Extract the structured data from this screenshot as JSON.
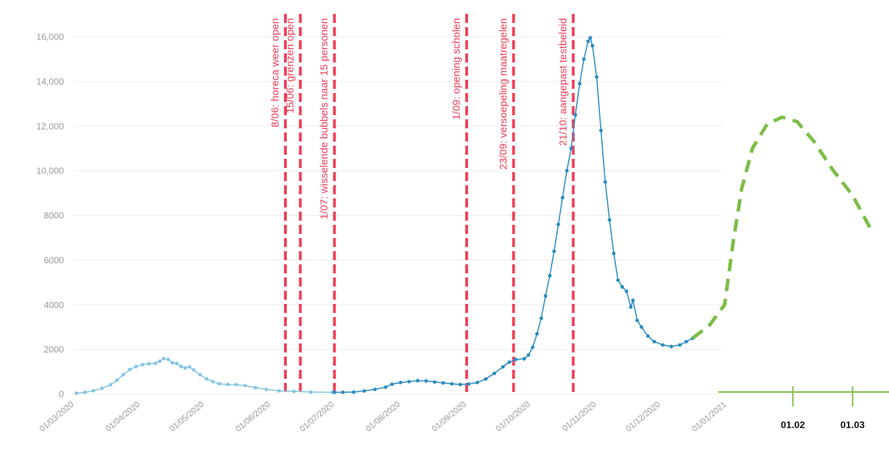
{
  "chart_data": {
    "type": "line",
    "title": "",
    "xlabel": "",
    "ylabel": "",
    "ylim": [
      0,
      16000
    ],
    "yticks": [
      {
        "value": 0,
        "label": "0"
      },
      {
        "value": 2000,
        "label": "2000"
      },
      {
        "value": 4000,
        "label": "4000"
      },
      {
        "value": 6000,
        "label": "6000"
      },
      {
        "value": 8000,
        "label": "8000"
      },
      {
        "value": 10000,
        "label": "10,000"
      },
      {
        "value": 12000,
        "label": "12,000"
      },
      {
        "value": 14000,
        "label": "14,000"
      },
      {
        "value": 16000,
        "label": "16,000"
      }
    ],
    "xticks": [
      {
        "date": "2020-03-01",
        "label": "01/03/2020"
      },
      {
        "date": "2020-04-01",
        "label": "01/04/2020"
      },
      {
        "date": "2020-05-01",
        "label": "01/05/2020"
      },
      {
        "date": "2020-06-01",
        "label": "01/06/2020"
      },
      {
        "date": "2020-07-01",
        "label": "01/07/2020"
      },
      {
        "date": "2020-08-01",
        "label": "01/08/2020"
      },
      {
        "date": "2020-09-01",
        "label": "01/09/2020"
      },
      {
        "date": "2020-10-01",
        "label": "01/10/2020"
      },
      {
        "date": "2020-11-01",
        "label": "01/11/2020"
      },
      {
        "date": "2020-12-01",
        "label": "01/12/2020"
      },
      {
        "date": "2021-01-01",
        "label": "01/01/2021"
      }
    ],
    "extension_ticks": [
      {
        "date": "2021-02-01",
        "label": "01.02"
      },
      {
        "date": "2021-03-01",
        "label": "01.03"
      }
    ],
    "events": [
      {
        "date": "2020-06-08",
        "label": "8/06: horeca weer open"
      },
      {
        "date": "2020-06-15",
        "label": "15/06: grenzen open"
      },
      {
        "date": "2020-07-01",
        "label": "1/07: wisselende bubbels naar 15 personen"
      },
      {
        "date": "2020-09-01",
        "label": "1/09: opening scholen"
      },
      {
        "date": "2020-09-23",
        "label": "23/09: versoepeling maatregelen"
      },
      {
        "date": "2020-10-21",
        "label": "21/10: aangepast testbeleid"
      }
    ],
    "series": [
      {
        "style": "light",
        "points": [
          [
            "2020-03-02",
            40
          ],
          [
            "2020-03-06",
            80
          ],
          [
            "2020-03-10",
            150
          ],
          [
            "2020-03-14",
            260
          ],
          [
            "2020-03-18",
            420
          ],
          [
            "2020-03-21",
            620
          ],
          [
            "2020-03-24",
            870
          ],
          [
            "2020-03-27",
            1100
          ],
          [
            "2020-03-30",
            1230
          ],
          [
            "2020-04-02",
            1320
          ],
          [
            "2020-04-05",
            1360
          ],
          [
            "2020-04-08",
            1380
          ],
          [
            "2020-04-10",
            1470
          ],
          [
            "2020-04-12",
            1590
          ],
          [
            "2020-04-14",
            1560
          ],
          [
            "2020-04-16",
            1400
          ],
          [
            "2020-04-18",
            1380
          ],
          [
            "2020-04-20",
            1240
          ],
          [
            "2020-04-22",
            1170
          ],
          [
            "2020-04-24",
            1220
          ],
          [
            "2020-04-26",
            1080
          ],
          [
            "2020-04-29",
            870
          ],
          [
            "2020-05-02",
            680
          ],
          [
            "2020-05-05",
            560
          ],
          [
            "2020-05-08",
            460
          ],
          [
            "2020-05-12",
            430
          ],
          [
            "2020-05-16",
            420
          ],
          [
            "2020-05-20",
            380
          ],
          [
            "2020-05-25",
            290
          ],
          [
            "2020-05-30",
            210
          ],
          [
            "2020-06-05",
            150
          ],
          [
            "2020-06-12",
            120
          ],
          [
            "2020-06-20",
            90
          ],
          [
            "2020-06-30",
            80
          ]
        ]
      },
      {
        "style": "dark",
        "points": [
          [
            "2020-07-01",
            80
          ],
          [
            "2020-07-05",
            80
          ],
          [
            "2020-07-10",
            90
          ],
          [
            "2020-07-15",
            140
          ],
          [
            "2020-07-20",
            210
          ],
          [
            "2020-07-25",
            310
          ],
          [
            "2020-07-28",
            440
          ],
          [
            "2020-08-01",
            520
          ],
          [
            "2020-08-05",
            560
          ],
          [
            "2020-08-09",
            600
          ],
          [
            "2020-08-13",
            590
          ],
          [
            "2020-08-17",
            540
          ],
          [
            "2020-08-21",
            500
          ],
          [
            "2020-08-25",
            460
          ],
          [
            "2020-08-29",
            430
          ],
          [
            "2020-09-02",
            450
          ],
          [
            "2020-09-06",
            520
          ],
          [
            "2020-09-10",
            680
          ],
          [
            "2020-09-14",
            930
          ],
          [
            "2020-09-18",
            1220
          ],
          [
            "2020-09-21",
            1430
          ],
          [
            "2020-09-24",
            1550
          ],
          [
            "2020-09-28",
            1580
          ],
          [
            "2020-09-30",
            1750
          ],
          [
            "2020-10-02",
            2100
          ],
          [
            "2020-10-04",
            2700
          ],
          [
            "2020-10-06",
            3400
          ],
          [
            "2020-10-08",
            4400
          ],
          [
            "2020-10-10",
            5300
          ],
          [
            "2020-10-12",
            6400
          ],
          [
            "2020-10-14",
            7600
          ],
          [
            "2020-10-16",
            8800
          ],
          [
            "2020-10-18",
            10000
          ],
          [
            "2020-10-20",
            11000
          ],
          [
            "2020-10-22",
            12500
          ],
          [
            "2020-10-24",
            13900
          ],
          [
            "2020-10-26",
            15000
          ],
          [
            "2020-10-28",
            15800
          ],
          [
            "2020-10-29",
            15950
          ],
          [
            "2020-10-30",
            15600
          ],
          [
            "2020-11-01",
            14200
          ],
          [
            "2020-11-03",
            11800
          ],
          [
            "2020-11-05",
            9500
          ],
          [
            "2020-11-07",
            7800
          ],
          [
            "2020-11-09",
            6300
          ],
          [
            "2020-11-11",
            5100
          ],
          [
            "2020-11-13",
            4800
          ],
          [
            "2020-11-15",
            4600
          ],
          [
            "2020-11-17",
            3900
          ],
          [
            "2020-11-18",
            4200
          ],
          [
            "2020-11-20",
            3300
          ],
          [
            "2020-11-22",
            3000
          ],
          [
            "2020-11-25",
            2600
          ],
          [
            "2020-11-28",
            2350
          ],
          [
            "2020-12-02",
            2200
          ],
          [
            "2020-12-06",
            2130
          ],
          [
            "2020-12-10",
            2200
          ],
          [
            "2020-12-13",
            2350
          ],
          [
            "2020-12-16",
            2500
          ]
        ]
      },
      {
        "style": "forecast",
        "points": [
          [
            "2020-12-16",
            2500
          ],
          [
            "2020-12-24",
            3100
          ],
          [
            "2020-12-31",
            4000
          ],
          [
            "2021-01-04",
            6800
          ],
          [
            "2021-01-08",
            9200
          ],
          [
            "2021-01-13",
            11000
          ],
          [
            "2021-01-20",
            12100
          ],
          [
            "2021-01-27",
            12400
          ],
          [
            "2021-02-03",
            12200
          ],
          [
            "2021-02-11",
            11300
          ],
          [
            "2021-02-20",
            10000
          ],
          [
            "2021-03-01",
            8900
          ],
          [
            "2021-03-10",
            7300
          ]
        ]
      }
    ],
    "colors": {
      "light": "#86c6e2",
      "dark": "#2b8cc2",
      "forecast": "#7cbd45",
      "event": "#ef3e58",
      "axis_extension": "#7cbd45",
      "grid": "#ebebeb",
      "tick_text": "#9a9a9a"
    },
    "grid": true,
    "legend": "none"
  }
}
